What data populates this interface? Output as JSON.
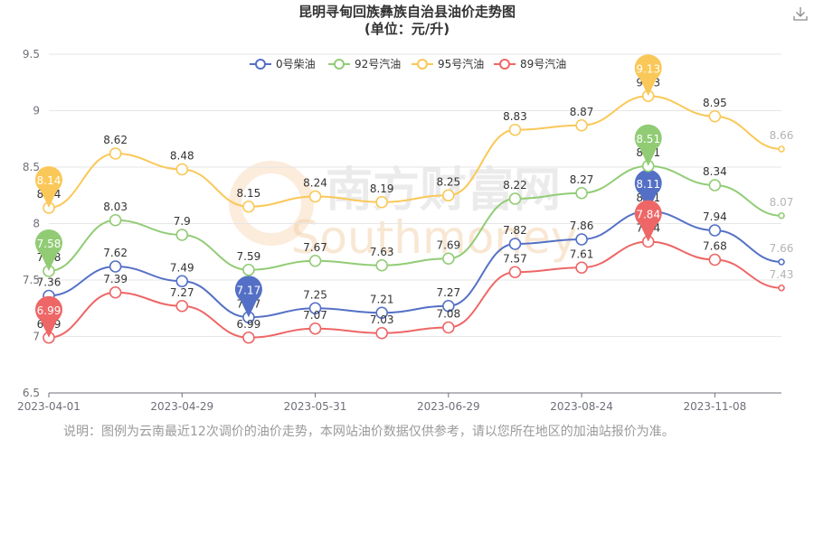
{
  "title": "昆明寻甸回族彝族自治县油价走势图",
  "subtitle": "(单位：元/升)",
  "note": "说明：图例为云南最近12次调价的油价走势，本网站油价数据仅供参考，请以您所在地区的加油站报价为准。",
  "watermark": "南方财富网",
  "watermark_sub": "Southmoney",
  "chart_data": {
    "type": "line",
    "x": [
      "2023-04-01",
      "2023-04-15",
      "2023-04-29",
      "2023-05-17",
      "2023-05-31",
      "2023-06-14",
      "2023-06-29",
      "2023-07-13",
      "2023-08-24",
      "2023-10-11",
      "2023-11-08",
      "2023-11-23"
    ],
    "x_tick_labels": [
      "2023-04-01",
      "2023-04-29",
      "2023-05-31",
      "2023-06-29",
      "2023-08-24",
      "2023-11-08"
    ],
    "ylim": [
      6.5,
      9.5
    ],
    "y_ticks": [
      "6.5",
      "7",
      "7.5",
      "8",
      "8.5",
      "9",
      "9.5"
    ],
    "grid": true,
    "legend_position": "top-center",
    "series": [
      {
        "name": "0号柴油",
        "color": "#5470c6",
        "values": [
          7.36,
          7.62,
          7.49,
          7.17,
          7.25,
          7.21,
          7.27,
          7.82,
          7.86,
          8.11,
          7.94,
          7.66
        ],
        "value_labels": [
          "7.36",
          "7.62",
          "7.49",
          "7.17",
          "7.25",
          "7.21",
          "7.27",
          "7.82",
          "7.86",
          "8.11",
          "7.94",
          "7.66"
        ],
        "max_label": "8.11",
        "min_label": "7.17"
      },
      {
        "name": "92号汽油",
        "color": "#91cc75",
        "values": [
          7.58,
          8.03,
          7.9,
          7.59,
          7.67,
          7.63,
          7.69,
          8.22,
          8.27,
          8.51,
          8.34,
          8.07
        ],
        "value_labels": [
          "7.58",
          "8.03",
          "7.9",
          "7.59",
          "7.67",
          "7.63",
          "7.69",
          "8.22",
          "8.27",
          "8.51",
          "8.34",
          "8.07"
        ],
        "max_label": "8.51",
        "min_label": "7.58"
      },
      {
        "name": "95号汽油",
        "color": "#fac858",
        "values": [
          8.14,
          8.62,
          8.48,
          8.15,
          8.24,
          8.19,
          8.25,
          8.83,
          8.87,
          9.13,
          8.95,
          8.66
        ],
        "value_labels": [
          "8.14",
          "8.62",
          "8.48",
          "8.15",
          "8.24",
          "8.19",
          "8.25",
          "8.83",
          "8.87",
          "9.13",
          "8.95",
          "8.66"
        ],
        "max_label": "9.13",
        "min_label": "8.14"
      },
      {
        "name": "89号汽油",
        "color": "#ee6666",
        "values": [
          6.99,
          7.39,
          7.27,
          6.99,
          7.07,
          7.03,
          7.08,
          7.57,
          7.61,
          7.84,
          7.68,
          7.43
        ],
        "value_labels": [
          "6.99",
          "7.39",
          "7.27",
          "6.99",
          "7.07",
          "7.03",
          "7.08",
          "7.57",
          "7.61",
          "7.84",
          "7.68",
          "7.43"
        ],
        "max_label": "7.84",
        "min_label": "6.99"
      }
    ]
  }
}
